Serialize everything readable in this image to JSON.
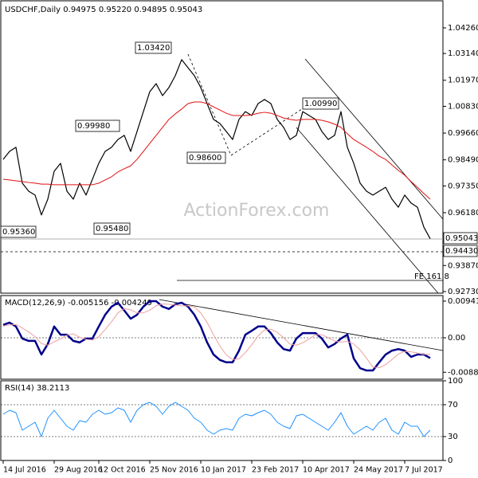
{
  "chart_data": [
    {
      "type": "line",
      "title": "USDCHF,Daily  0.94975 0.95220 0.94895 0.95043",
      "watermark": "ActionForex.com",
      "ylim": [
        0.9266,
        1.0541
      ],
      "yticks": [
        {
          "value": 1.0426,
          "label": "1.04260"
        },
        {
          "value": 1.0314,
          "label": "1.03140"
        },
        {
          "value": 1.0197,
          "label": "1.01970"
        },
        {
          "value": 1.0083,
          "label": "1.00830"
        },
        {
          "value": 0.9966,
          "label": "0.99660"
        },
        {
          "value": 0.9849,
          "label": "0.98490"
        },
        {
          "value": 0.9735,
          "label": "0.97350"
        },
        {
          "value": 0.9618,
          "label": "0.96180"
        },
        {
          "value": 0.9387,
          "label": "0.93870"
        },
        {
          "value": 0.9273,
          "label": "0.92730"
        }
      ],
      "annotations": [
        "1.03420",
        "0.99980",
        "0.98600",
        "0.95480",
        "0.95360",
        "1.00990",
        "FE 161.8",
        "0.95043",
        "0.94430"
      ],
      "series": [
        {
          "color": "#000000",
          "values": [
            0.9851,
            0.9886,
            0.9904,
            0.9747,
            0.9712,
            0.9695,
            0.9608,
            0.9677,
            0.9799,
            0.9834,
            0.9712,
            0.9677,
            0.9747,
            0.9695,
            0.9764,
            0.9834,
            0.9886,
            0.9904,
            0.9938,
            0.9956,
            0.9886,
            0.9973,
            1.006,
            1.0147,
            1.0182,
            1.013,
            1.0165,
            1.0217,
            1.0287,
            1.0252,
            1.0217,
            1.0165,
            1.0095,
            1.0026,
            1.0008,
            0.9973,
            0.9938,
            1.0026,
            1.006,
            1.0043,
            1.0095,
            1.0113,
            1.0095,
            1.0026,
            0.9991,
            0.9938,
            0.9956,
            1.006,
            1.0043,
            1.0026,
            0.9973,
            0.9938,
            0.9956,
            1.006,
            0.9904,
            0.9834,
            0.9747,
            0.9712,
            0.9695,
            0.9712,
            0.9729,
            0.9677,
            0.9642,
            0.9695,
            0.966,
            0.9642,
            0.9555,
            0.9504
          ]
        },
        {
          "color": "#e01010",
          "values": [
            0.9764,
            0.9761,
            0.9757,
            0.9754,
            0.975,
            0.9747,
            0.9743,
            0.9743,
            0.974,
            0.974,
            0.974,
            0.974,
            0.974,
            0.974,
            0.974,
            0.9747,
            0.9761,
            0.9775,
            0.9796,
            0.981,
            0.9823,
            0.9851,
            0.9886,
            0.9921,
            0.9956,
            0.9991,
            1.0026,
            1.005,
            1.0071,
            1.0095,
            1.0102,
            1.0102,
            1.0095,
            1.0081,
            1.0067,
            1.0053,
            1.0043,
            1.0043,
            1.0043,
            1.0046,
            1.0053,
            1.0057,
            1.0053,
            1.0043,
            1.0032,
            1.0026,
            1.0022,
            1.0026,
            1.0026,
            1.0026,
            1.0022,
            1.0015,
            1.0005,
            0.9991,
            0.9963,
            0.9938,
            0.9921,
            0.9904,
            0.9886,
            0.9865,
            0.9851,
            0.9827,
            0.9803,
            0.9782,
            0.9754,
            0.9729,
            0.9702,
            0.9677
          ]
        }
      ]
    },
    {
      "type": "line",
      "title": "MACD(12,26,9) -0.005156 -0.004249",
      "ylim": [
        -0.01064,
        0.01084
      ],
      "yticks": [
        0.009411,
        {
          "value": 0,
          "label": "0.00"
        },
        -0.008852
      ],
      "zero_line": true,
      "series": [
        {
          "color": "#00008b",
          "values": [
            0.0033,
            0.0039,
            0.0029,
            -0.0002,
            -0.0008,
            -0.0008,
            -0.0043,
            -0.0016,
            0.0029,
            0.0008,
            0.0008,
            -0.0008,
            -0.0012,
            -0.0002,
            -0.0002,
            0.0029,
            0.0059,
            0.008,
            0.009,
            0.007,
            0.0049,
            0.0059,
            0.008,
            0.0094,
            0.0094,
            0.008,
            0.0074,
            0.0086,
            0.009,
            0.008,
            0.0059,
            0.0029,
            -0.0012,
            -0.0043,
            -0.0057,
            -0.0063,
            -0.0063,
            -0.0033,
            0.0008,
            0.0018,
            0.0029,
            0.0029,
            0.0012,
            -0.0012,
            -0.0029,
            -0.0033,
            -0.0002,
            0.0012,
            0.0012,
            0.0012,
            -0.0002,
            -0.0025,
            -0.0016,
            -0.0002,
            0.0008,
            -0.0053,
            -0.0078,
            -0.0084,
            -0.0084,
            -0.0063,
            -0.0043,
            -0.0033,
            -0.0029,
            -0.0033,
            -0.0049,
            -0.0043,
            -0.0043,
            -0.0052
          ]
        },
        {
          "color": "#f0a0a0",
          "values": [
            0.003,
            0.0033,
            0.0034,
            0.0025,
            0.0015,
            0.0003,
            -0.0015,
            -0.0019,
            -0.001,
            -0.0003,
            0.0007,
            0.001,
            0.0001,
            -0.0004,
            -0.0006,
            0.0003,
            0.0021,
            0.0041,
            0.0064,
            0.0075,
            0.0072,
            0.0064,
            0.0064,
            0.0071,
            0.0082,
            0.0087,
            0.0086,
            0.0084,
            0.0082,
            0.0082,
            0.0079,
            0.0064,
            0.0039,
            0.0008,
            -0.0021,
            -0.0044,
            -0.0056,
            -0.0054,
            -0.0038,
            -0.0018,
            0.0005,
            0.002,
            0.0022,
            0.0014,
            0.0,
            -0.0016,
            -0.0019,
            -0.0013,
            -0.0003,
            0.0008,
            0.0008,
            0.0,
            -0.0008,
            -0.0011,
            -0.0009,
            -0.0016,
            -0.0031,
            -0.0052,
            -0.0075,
            -0.0077,
            -0.0069,
            -0.0056,
            -0.0042,
            -0.0035,
            -0.0036,
            -0.0039,
            -0.0043,
            -0.0042
          ]
        }
      ]
    },
    {
      "type": "line",
      "title": "RSI(14) 38.2113",
      "ylim": [
        0,
        100
      ],
      "yticks": [
        100,
        70,
        30,
        0
      ],
      "grid": true,
      "categories": [
        "14 Jul 2016",
        null,
        null,
        null,
        null,
        null,
        null,
        null,
        "29 Aug 2016",
        null,
        null,
        null,
        null,
        null,
        null,
        "12 Oct 2016",
        null,
        null,
        null,
        null,
        null,
        null,
        null,
        "25 Nov 2016",
        null,
        null,
        null,
        null,
        null,
        null,
        null,
        "10 Jan 2017",
        null,
        null,
        null,
        null,
        null,
        null,
        null,
        "23 Feb 2017",
        null,
        null,
        null,
        null,
        null,
        null,
        null,
        "10 Apr 2017",
        null,
        null,
        null,
        null,
        null,
        null,
        null,
        "24 May 2017",
        null,
        null,
        null,
        null,
        null,
        null,
        null,
        "7 Jul 2017",
        null,
        null,
        null,
        null
      ],
      "series": [
        {
          "color": "#1e90ff",
          "values": [
            58,
            63,
            60,
            38,
            43,
            48,
            30,
            53,
            63,
            53,
            43,
            38,
            50,
            48,
            58,
            63,
            58,
            60,
            66,
            63,
            48,
            63,
            70,
            73,
            68,
            58,
            68,
            73,
            68,
            63,
            53,
            48,
            38,
            33,
            38,
            40,
            38,
            53,
            58,
            56,
            60,
            63,
            58,
            48,
            43,
            40,
            56,
            58,
            53,
            48,
            43,
            38,
            48,
            60,
            43,
            33,
            38,
            43,
            38,
            48,
            53,
            38,
            33,
            48,
            43,
            43,
            30,
            38
          ]
        }
      ]
    }
  ]
}
